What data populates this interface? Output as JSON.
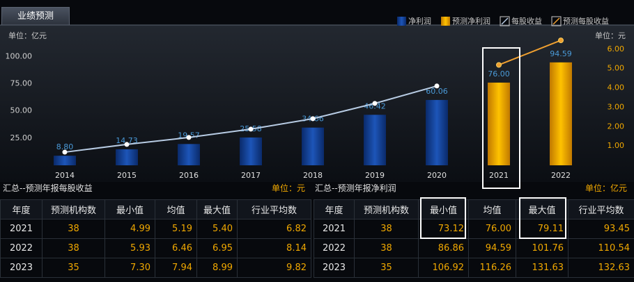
{
  "tab": "业绩预测",
  "chart_data": {
    "type": "bar",
    "y_unit": "单位：亿元",
    "y2_unit": "单位：元",
    "categories": [
      "2014",
      "2015",
      "2016",
      "2017",
      "2018",
      "2019",
      "2020",
      "2021",
      "2022"
    ],
    "series": [
      {
        "name": "净利润",
        "type": "bar",
        "color": "#1a4fa8",
        "values": [
          8.8,
          14.73,
          19.57,
          25.58,
          34.66,
          46.42,
          60.06,
          null,
          null
        ],
        "value_labels": [
          "8.80",
          "14.73",
          "19.57",
          "25.58",
          "34.66",
          "46.42",
          "60.06",
          null,
          null
        ]
      },
      {
        "name": "预测净利润",
        "type": "bar",
        "color": "#f0a800",
        "values": [
          null,
          null,
          null,
          null,
          null,
          null,
          null,
          76.0,
          94.59
        ],
        "value_labels": [
          null,
          null,
          null,
          null,
          null,
          null,
          null,
          "76.00",
          "94.59"
        ]
      },
      {
        "name": "每股收益",
        "type": "line",
        "axis": "y2",
        "color": "#b8cce4",
        "values": [
          0.68,
          1.08,
          1.44,
          1.87,
          2.41,
          3.2,
          4.1,
          null,
          null
        ]
      },
      {
        "name": "预测每股收益",
        "type": "line",
        "axis": "y2",
        "color": "#f0a030",
        "values": [
          null,
          null,
          null,
          null,
          null,
          null,
          null,
          5.19,
          6.46
        ]
      }
    ],
    "ylim": [
      0,
      120
    ],
    "yticks": [
      {
        "value": 25,
        "label": "25.00"
      },
      {
        "value": 50,
        "label": "50.00"
      },
      {
        "value": 75,
        "label": "75.00"
      },
      {
        "value": 100,
        "label": "100.00"
      }
    ],
    "y2lim": [
      0,
      6.75
    ],
    "y2ticks": [
      {
        "value": 1,
        "label": "1.00"
      },
      {
        "value": 2,
        "label": "2.00"
      },
      {
        "value": 3,
        "label": "3.00"
      },
      {
        "value": 4,
        "label": "4.00"
      },
      {
        "value": 5,
        "label": "5.00"
      },
      {
        "value": 6,
        "label": "6.00"
      }
    ]
  },
  "tables": [
    {
      "title": "汇总--预测年报每股收益",
      "unit": "单位：元",
      "header": [
        "年度",
        "预测机构数",
        "最小值",
        "均值",
        "最大值",
        "行业平均数"
      ],
      "rows": [
        [
          "2021",
          "38",
          "4.99",
          "5.19",
          "5.40",
          "6.82"
        ],
        [
          "2022",
          "38",
          "5.93",
          "6.46",
          "6.95",
          "8.14"
        ],
        [
          "2023",
          "35",
          "7.30",
          "7.94",
          "8.99",
          "9.82"
        ]
      ]
    },
    {
      "title": "汇总--预测年报净利润",
      "unit": "单位：亿元",
      "header": [
        "年度",
        "预测机构数",
        "最小值",
        "均值",
        "最大值",
        "行业平均数"
      ],
      "rows": [
        [
          "2021",
          "38",
          "73.12",
          "76.00",
          "79.11",
          "93.45"
        ],
        [
          "2022",
          "38",
          "86.86",
          "94.59",
          "101.76",
          "110.54"
        ],
        [
          "2023",
          "35",
          "106.92",
          "116.26",
          "131.63",
          "132.63"
        ]
      ]
    }
  ]
}
